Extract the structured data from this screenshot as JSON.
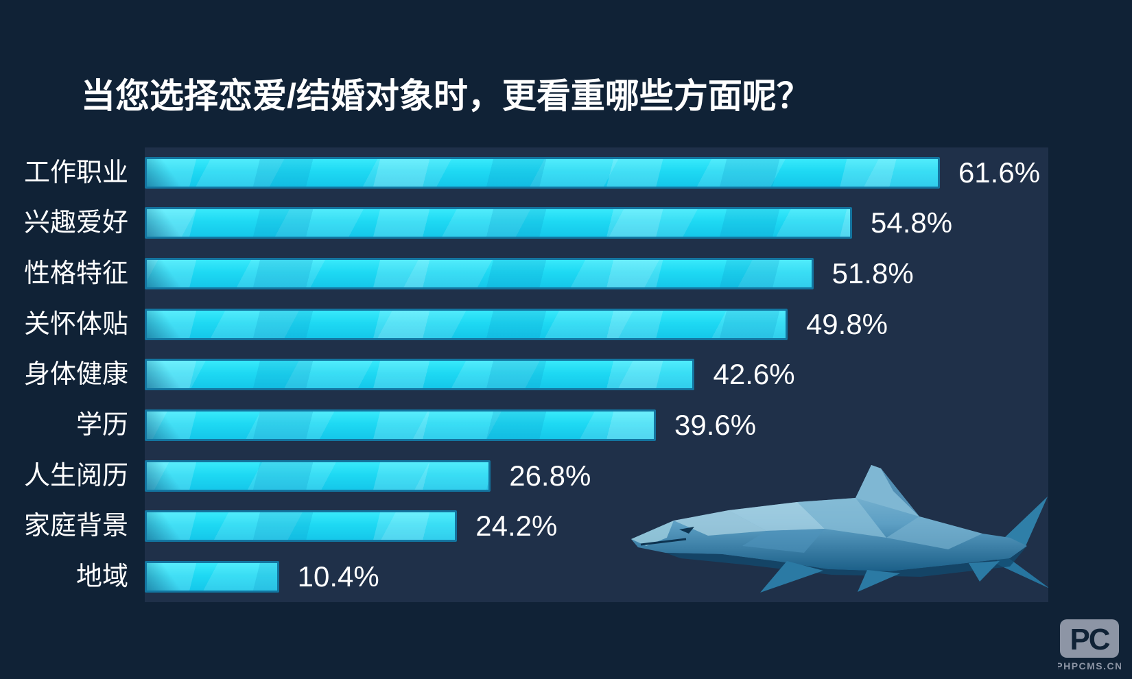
{
  "page": {
    "background_color": "#102236",
    "plot_background_color": "#1f3049"
  },
  "chart_data": {
    "type": "bar",
    "orientation": "horizontal",
    "title": "当您选择恋爱/结婚对象时，更看重哪些方面呢？",
    "categories": [
      "工作职业",
      "兴趣爱好",
      "性格特征",
      "关怀体贴",
      "身体健康",
      "学历",
      "人生阅历",
      "家庭背景",
      "地域"
    ],
    "values": [
      61.6,
      54.8,
      51.8,
      49.8,
      42.6,
      39.6,
      26.8,
      24.2,
      10.4
    ],
    "value_labels": [
      "61.6%",
      "54.8%",
      "51.8%",
      "49.8%",
      "42.6%",
      "39.6%",
      "26.8%",
      "24.2%",
      "10.4%"
    ],
    "xlabel": "",
    "ylabel": "",
    "xlim": [
      0,
      70
    ],
    "grid": false,
    "legend": "none",
    "bar_color": "#1ed9f3",
    "bar_border_color": "#1375a0",
    "text_color": "#ffffff",
    "decoration": "low-poly shark illustration in lower right of plot area"
  },
  "watermark": {
    "logo_letters": "PC",
    "caption": "PHPCMS.CN",
    "color": "#8d95a5"
  }
}
